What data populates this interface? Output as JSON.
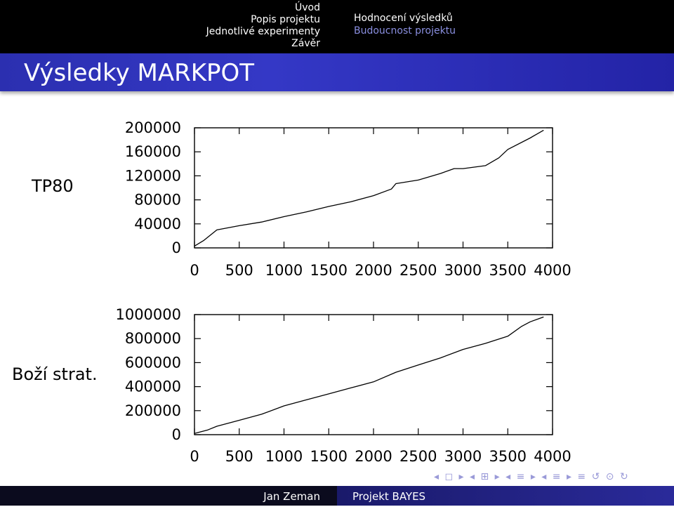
{
  "nav": {
    "left": [
      "Úvod",
      "Popis projektu",
      "Jednotlivé experimenty",
      "Závěr"
    ],
    "right": [
      "Hodnocení výsledků",
      "Budoucnost projektu"
    ],
    "current": "Hodnocení výsledků"
  },
  "frame_title": "Výsledky MARKPOT",
  "row_labels": [
    "TP80",
    "Boží strat."
  ],
  "footer": {
    "author": "Jan Zeman",
    "title": "Projekt BAYES"
  },
  "nav_symbols": "◂ ◻ ▸ ◂ ⊞ ▸ ◂ ≡ ▸ ◂ ≡ ▸  ≡  ↺ ⊙ ↻",
  "chart_data": [
    {
      "type": "line",
      "title": "",
      "xlabel": "",
      "ylabel": "",
      "xlim": [
        0,
        4000
      ],
      "ylim": [
        0,
        200000
      ],
      "xticks": [
        "0",
        "500",
        "1000",
        "1500",
        "2000",
        "2500",
        "3000",
        "3500",
        "4000"
      ],
      "yticks": [
        "200000",
        "160000",
        "120000",
        "80000",
        "40000",
        "0"
      ],
      "series": [
        {
          "x": [
            0,
            100,
            250,
            500,
            750,
            1000,
            1250,
            1500,
            1750,
            2000,
            2200,
            2250,
            2500,
            2750,
            2900,
            3000,
            3250,
            3400,
            3500,
            3750,
            3900
          ],
          "y": [
            3000,
            12000,
            30000,
            37000,
            43000,
            52000,
            60000,
            69000,
            77000,
            87000,
            98000,
            107000,
            113000,
            124000,
            132000,
            132000,
            137000,
            150000,
            164000,
            183000,
            196000
          ]
        }
      ]
    },
    {
      "type": "line",
      "title": "",
      "xlabel": "",
      "ylabel": "",
      "xlim": [
        0,
        4000
      ],
      "ylim": [
        0,
        1000000
      ],
      "xticks": [
        "0",
        "500",
        "1000",
        "1500",
        "2000",
        "2500",
        "3000",
        "3500",
        "4000"
      ],
      "yticks": [
        "1000000",
        "800000",
        "600000",
        "400000",
        "200000",
        "0"
      ],
      "series": [
        {
          "x": [
            0,
            150,
            250,
            500,
            750,
            1000,
            1250,
            1500,
            1750,
            2000,
            2250,
            2500,
            2750,
            3000,
            3250,
            3500,
            3650,
            3750,
            3900
          ],
          "y": [
            10000,
            40000,
            70000,
            120000,
            170000,
            240000,
            290000,
            340000,
            390000,
            440000,
            520000,
            580000,
            640000,
            710000,
            760000,
            820000,
            900000,
            940000,
            980000
          ]
        }
      ]
    }
  ]
}
